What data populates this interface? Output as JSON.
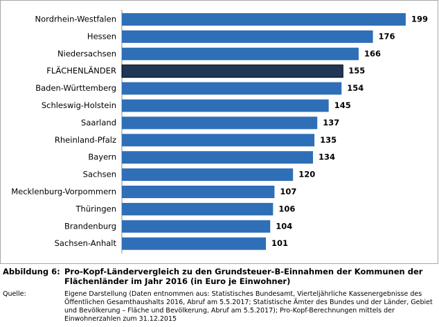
{
  "chart_data": {
    "type": "barh",
    "categories": [
      "Nordrhein-Westfalen",
      "Hessen",
      "Niedersachsen",
      "FLÄCHENLÄNDER",
      "Baden-Württemberg",
      "Schleswig-Holstein",
      "Saarland",
      "Rheinland-Pfalz",
      "Bayern",
      "Sachsen",
      "Mecklenburg-Vorpommern",
      "Thüringen",
      "Brandenburg",
      "Sachsen-Anhalt"
    ],
    "values": [
      199,
      176,
      166,
      155,
      154,
      145,
      137,
      135,
      134,
      120,
      107,
      106,
      104,
      101
    ],
    "colors": [
      "#2e6fb7",
      "#2e6fb7",
      "#2e6fb7",
      "#1f3657",
      "#2e6fb7",
      "#2e6fb7",
      "#2e6fb7",
      "#2e6fb7",
      "#2e6fb7",
      "#2e6fb7",
      "#2e6fb7",
      "#2e6fb7",
      "#2e6fb7",
      "#2e6fb7"
    ],
    "figure_label": "Abbildung 6:",
    "title": "Pro-Kopf-Ländervergleich zu den Grundsteuer-B-Einnahmen der Kommunen der Flächenländer im Jahr 2016 (in Euro je Einwohner)",
    "source_label": "Quelle:",
    "source": "Eigene Darstellung (Daten entnommen aus: Statistisches Bundesamt, Vierteljährliche Kassenergebnisse des Öffentlichen Gesamthaushalts 2016, Abruf am 5.5.2017; Statistische Ämter des Bundes und der Länder, Gebiet und Bevölkerung – Fläche und Bevölkerung, Abruf am 5.5.2017); Pro-Kopf-Berechnungen mittels der Einwohnerzahlen zum 31.12.2015"
  }
}
